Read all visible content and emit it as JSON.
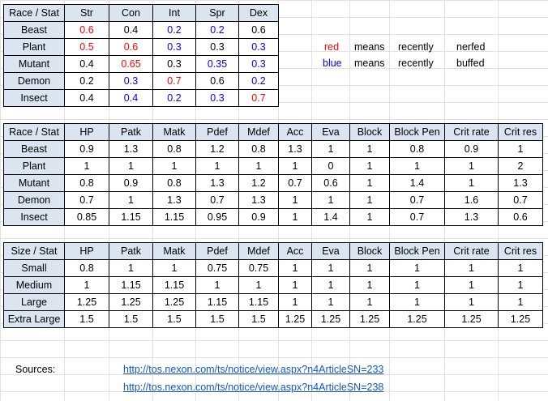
{
  "table1": {
    "headers": [
      "Race / Stat",
      "Str",
      "Con",
      "Int",
      "Spr",
      "Dex"
    ],
    "rows": [
      [
        "Beast",
        "0.6",
        "0.4",
        "0.2",
        "0.2",
        "0.6"
      ],
      [
        "Plant",
        "0.5",
        "0.6",
        "0.3",
        "0.3",
        "0.3"
      ],
      [
        "Mutant",
        "0.4",
        "0.65",
        "0.3",
        "0.35",
        "0.3"
      ],
      [
        "Demon",
        "0.2",
        "0.3",
        "0.7",
        "0.6",
        "0.2"
      ],
      [
        "Insect",
        "0.4",
        "0.4",
        "0.2",
        "0.3",
        "0.7"
      ]
    ],
    "colors": [
      [
        "red",
        "black",
        "blue",
        "blue",
        "black"
      ],
      [
        "red",
        "red",
        "blue",
        "black",
        "blue"
      ],
      [
        "black",
        "red",
        "black",
        "blue",
        "blue"
      ],
      [
        "black",
        "blue",
        "red",
        "black",
        "blue"
      ],
      [
        "black",
        "blue",
        "blue",
        "blue",
        "red"
      ]
    ]
  },
  "legend": [
    {
      "color_word": "red",
      "word": "means",
      "adverb": "recently",
      "meaning": "nerfed",
      "color": "#ff0000"
    },
    {
      "color_word": "blue",
      "word": "means",
      "adverb": "recently",
      "meaning": "buffed",
      "color": "#0000ff"
    }
  ],
  "table2": {
    "headers": [
      "Race / Stat",
      "HP",
      "Patk",
      "Matk",
      "Pdef",
      "Mdef",
      "Acc",
      "Eva",
      "Block",
      "Block Pen",
      "Crit rate",
      "Crit res"
    ],
    "rows": [
      [
        "Beast",
        "0.9",
        "1.3",
        "0.8",
        "1.2",
        "0.8",
        "1.3",
        "1",
        "1",
        "0.8",
        "0.9",
        "1"
      ],
      [
        "Plant",
        "1",
        "1",
        "1",
        "1",
        "1",
        "1",
        "0",
        "1",
        "1",
        "1",
        "2"
      ],
      [
        "Mutant",
        "0.8",
        "0.9",
        "0.8",
        "1.3",
        "1.2",
        "0.7",
        "0.6",
        "1",
        "1.4",
        "1",
        "1.3"
      ],
      [
        "Demon",
        "0.7",
        "1",
        "1.3",
        "0.7",
        "1.3",
        "1",
        "1",
        "1",
        "0.7",
        "1.6",
        "0.7"
      ],
      [
        "Insect",
        "0.85",
        "1.15",
        "1.15",
        "0.95",
        "0.9",
        "1",
        "1.4",
        "1",
        "0.7",
        "1.3",
        "0.6"
      ]
    ]
  },
  "table3": {
    "headers": [
      "Size / Stat",
      "HP",
      "Patk",
      "Matk",
      "Pdef",
      "Mdef",
      "Acc",
      "Eva",
      "Block",
      "Block Pen",
      "Crit rate",
      "Crit res"
    ],
    "rows": [
      [
        "Small",
        "0.8",
        "1",
        "1",
        "0.75",
        "0.75",
        "1",
        "1",
        "1",
        "1",
        "1",
        "1"
      ],
      [
        "Medium",
        "1",
        "1.15",
        "1.15",
        "1",
        "1",
        "1",
        "1",
        "1",
        "1",
        "1",
        "1"
      ],
      [
        "Large",
        "1.25",
        "1.25",
        "1.25",
        "1.15",
        "1.15",
        "1",
        "1",
        "1",
        "1",
        "1",
        "1"
      ],
      [
        "Extra Large",
        "1.5",
        "1.5",
        "1.5",
        "1.5",
        "1.5",
        "1.25",
        "1.25",
        "1.25",
        "1.25",
        "1.25",
        "1.25"
      ]
    ]
  },
  "sources": {
    "label": "Sources:",
    "links": [
      "http://tos.nexon.com/ts/notice/view.aspx?n4ArticleSN=233",
      "http://tos.nexon.com/ts/notice/view.aspx?n4ArticleSN=238"
    ]
  }
}
